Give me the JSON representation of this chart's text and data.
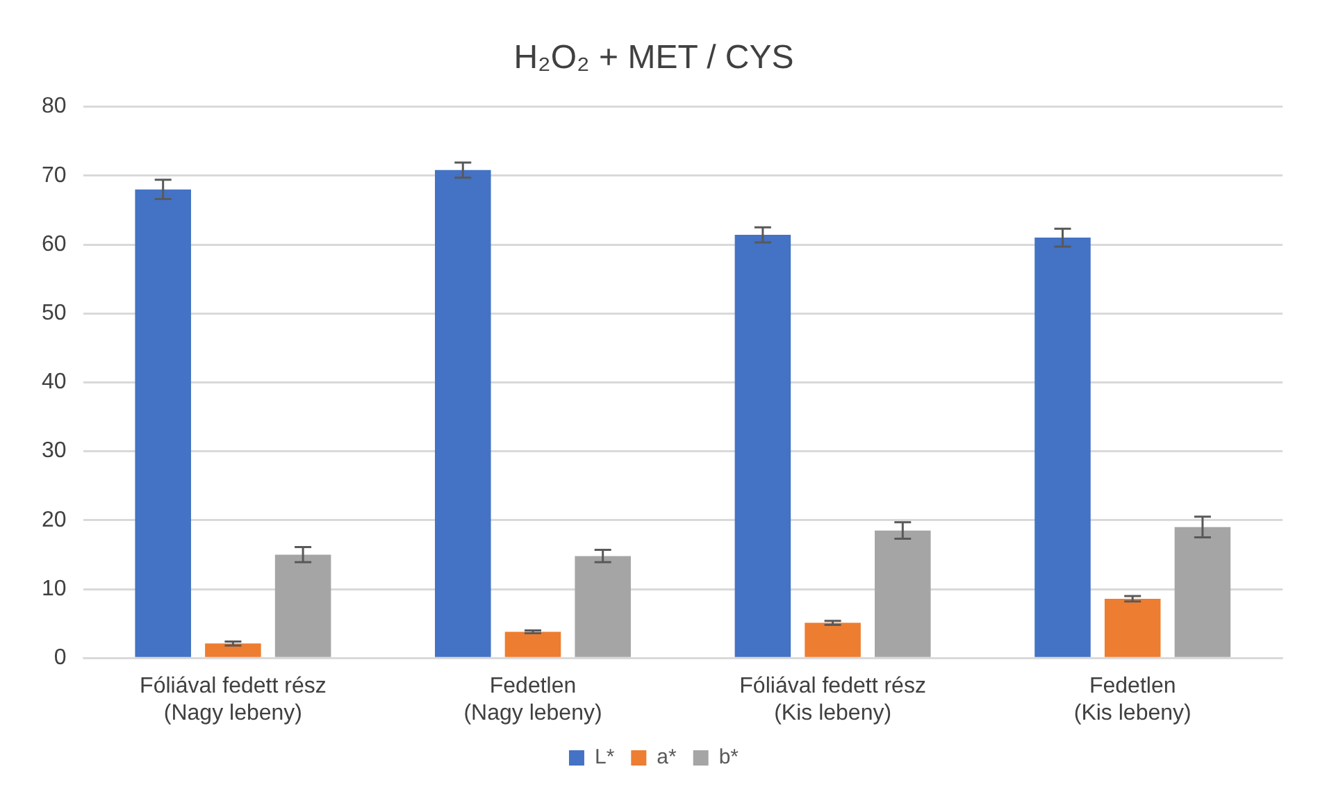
{
  "chart_data": {
    "type": "bar",
    "title": "H₂O₂ + MET / CYS",
    "categories": [
      "Fóliával fedett rész (Nagy lebeny)",
      "Fedetlen (Nagy lebeny)",
      "Fóliával fedett rész (Kis lebeny)",
      "Fedetlen (Kis lebeny)"
    ],
    "series": [
      {
        "name": "L*",
        "color": "#4472c4",
        "values": [
          68.0,
          70.8,
          61.4,
          61.0
        ],
        "errors": [
          1.4,
          1.1,
          1.1,
          1.3
        ]
      },
      {
        "name": "a*",
        "color": "#ed7d31",
        "values": [
          2.1,
          3.8,
          5.1,
          8.6
        ],
        "errors": [
          0.3,
          0.2,
          0.3,
          0.4
        ]
      },
      {
        "name": "b*",
        "color": "#a5a5a5",
        "values": [
          15.0,
          14.8,
          18.5,
          19.0
        ],
        "errors": [
          1.1,
          0.9,
          1.2,
          1.5
        ]
      }
    ],
    "ylim": [
      0,
      80
    ],
    "yticks": [
      0,
      10,
      20,
      30,
      40,
      50,
      60,
      70,
      80
    ],
    "grid": "y",
    "legend": "bottom"
  }
}
